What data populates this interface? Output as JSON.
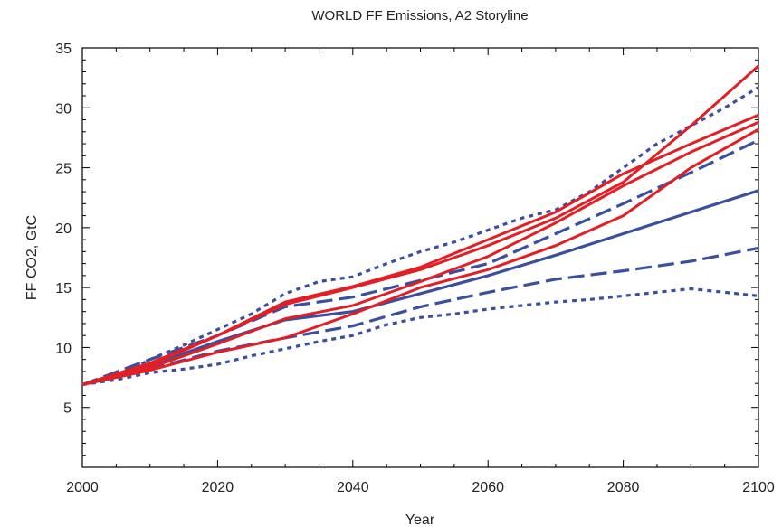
{
  "chart_data": {
    "type": "line",
    "title": "WORLD FF Emissions, A2 Storyline",
    "xlabel": "Year",
    "ylabel": "FF CO2, GtC",
    "xlim": [
      2000,
      2100
    ],
    "ylim": [
      0,
      35
    ],
    "x_ticks": [
      2000,
      2020,
      2040,
      2060,
      2080,
      2100
    ],
    "y_ticks": [
      5,
      10,
      15,
      20,
      25,
      30,
      35
    ],
    "grid": false,
    "legend": "none",
    "colors": {
      "red": "#e31e24",
      "blue": "#3a4fa0"
    },
    "series": [
      {
        "color": "red",
        "dash": "solid",
        "x": [
          2000,
          2010,
          2020,
          2030,
          2040,
          2050,
          2060,
          2070,
          2080,
          2090,
          2100
        ],
        "y": [
          6.9,
          8.5,
          11.0,
          13.6,
          15.0,
          16.5,
          18.5,
          20.8,
          23.8,
          28.5,
          33.5
        ]
      },
      {
        "color": "red",
        "dash": "solid",
        "x": [
          2000,
          2010,
          2020,
          2030,
          2040,
          2050,
          2060,
          2070,
          2080,
          2090,
          2100
        ],
        "y": [
          6.9,
          8.7,
          11.0,
          13.8,
          15.1,
          16.7,
          19.0,
          21.3,
          24.5,
          27.0,
          29.4
        ]
      },
      {
        "color": "red",
        "dash": "solid",
        "x": [
          2000,
          2010,
          2020,
          2030,
          2040,
          2050,
          2060,
          2070,
          2080,
          2090,
          2100
        ],
        "y": [
          6.9,
          8.3,
          10.3,
          12.4,
          13.5,
          15.5,
          17.6,
          20.4,
          23.5,
          26.3,
          28.8
        ]
      },
      {
        "color": "red",
        "dash": "solid",
        "x": [
          2000,
          2010,
          2020,
          2030,
          2040,
          2050,
          2060,
          2070,
          2080,
          2090,
          2100
        ],
        "y": [
          6.9,
          8.1,
          9.6,
          10.8,
          12.8,
          15.0,
          16.5,
          18.5,
          21.0,
          25.0,
          28.2
        ]
      },
      {
        "color": "blue",
        "dash": "solid",
        "x": [
          2000,
          2010,
          2020,
          2030,
          2040,
          2050,
          2060,
          2070,
          2080,
          2090,
          2100
        ],
        "y": [
          6.9,
          8.5,
          10.5,
          12.3,
          13.0,
          14.5,
          16.0,
          17.7,
          19.5,
          21.3,
          23.1
        ]
      },
      {
        "color": "blue",
        "dash": "dashed",
        "x": [
          2000,
          2010,
          2020,
          2030,
          2040,
          2050,
          2060,
          2070,
          2080,
          2090,
          2100
        ],
        "y": [
          6.9,
          9.0,
          11.0,
          13.4,
          14.2,
          15.6,
          17.0,
          19.5,
          22.0,
          24.6,
          27.3
        ]
      },
      {
        "color": "blue",
        "dash": "dashed",
        "x": [
          2000,
          2010,
          2020,
          2030,
          2040,
          2050,
          2060,
          2070,
          2080,
          2090,
          2100
        ],
        "y": [
          6.9,
          8.2,
          9.7,
          10.8,
          11.8,
          13.4,
          14.6,
          15.7,
          16.4,
          17.2,
          18.3
        ]
      },
      {
        "color": "blue",
        "dash": "dotted",
        "x": [
          2000,
          2005,
          2010,
          2015,
          2020,
          2025,
          2030,
          2035,
          2040,
          2045,
          2050,
          2055,
          2060,
          2065,
          2070,
          2075,
          2080,
          2085,
          2090,
          2095,
          2100
        ],
        "y": [
          6.9,
          7.5,
          9.0,
          10.2,
          11.5,
          12.8,
          14.5,
          15.5,
          15.9,
          17.0,
          18.0,
          18.8,
          19.8,
          20.8,
          21.5,
          23.0,
          25.0,
          27.0,
          28.5,
          30.0,
          31.7
        ]
      },
      {
        "color": "blue",
        "dash": "dotted",
        "x": [
          2000,
          2005,
          2010,
          2015,
          2020,
          2025,
          2030,
          2035,
          2040,
          2045,
          2050,
          2055,
          2060,
          2065,
          2070,
          2075,
          2080,
          2085,
          2090,
          2095,
          2100
        ],
        "y": [
          6.9,
          7.3,
          7.9,
          8.2,
          8.6,
          9.3,
          9.9,
          10.5,
          11.0,
          11.9,
          12.5,
          12.8,
          13.2,
          13.5,
          13.8,
          14.0,
          14.3,
          14.6,
          14.9,
          14.6,
          14.3
        ]
      }
    ]
  }
}
